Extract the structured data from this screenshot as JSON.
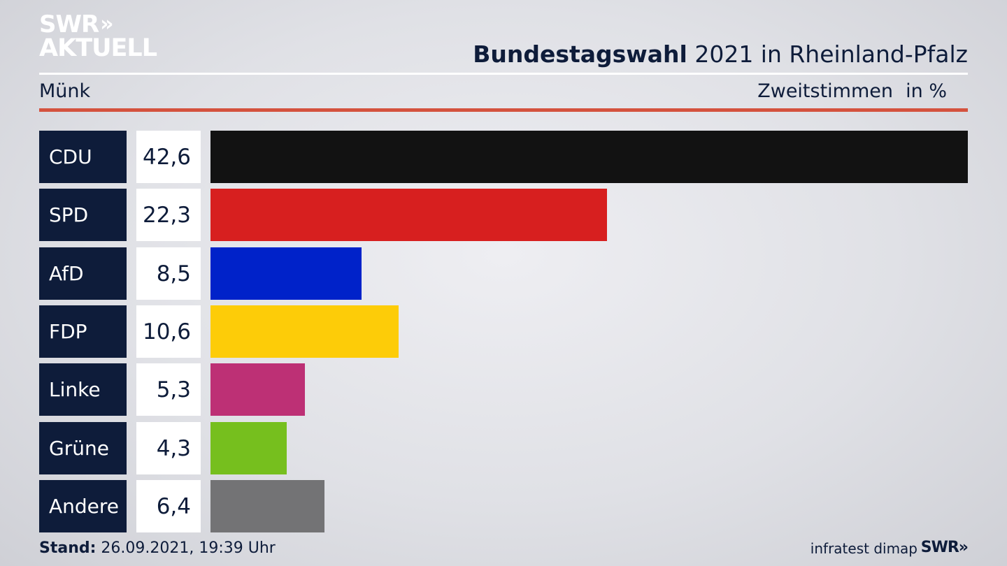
{
  "logo": {
    "line1": "SWR",
    "line2": "AKTUELL"
  },
  "header": {
    "title_bold": "Bundestagswahl",
    "title_rest": " 2021 in Rheinland-Pfalz",
    "region": "Münk",
    "vote_type": "Zweitstimmen",
    "unit": "in %"
  },
  "chart_data": {
    "type": "bar",
    "categories": [
      "CDU",
      "SPD",
      "AfD",
      "FDP",
      "Linke",
      "Grüne",
      "Andere"
    ],
    "values": [
      42.6,
      22.3,
      8.5,
      10.6,
      5.3,
      4.3,
      6.4
    ],
    "value_labels": [
      "42,6",
      "22,3",
      "8,5",
      "10,6",
      "5,3",
      "4,3",
      "6,4"
    ],
    "colors": [
      "#121212",
      "#d71f1f",
      "#0022c9",
      "#fdcc08",
      "#bd3075",
      "#76bf1e",
      "#737375"
    ],
    "orientation": "horizontal",
    "xlim": [
      0,
      42.6
    ]
  },
  "footer": {
    "stand_label": "Stand:",
    "stand_value": " 26.09.2021, 19:39 Uhr",
    "source": "infratest dimap",
    "logo": "SWR"
  }
}
